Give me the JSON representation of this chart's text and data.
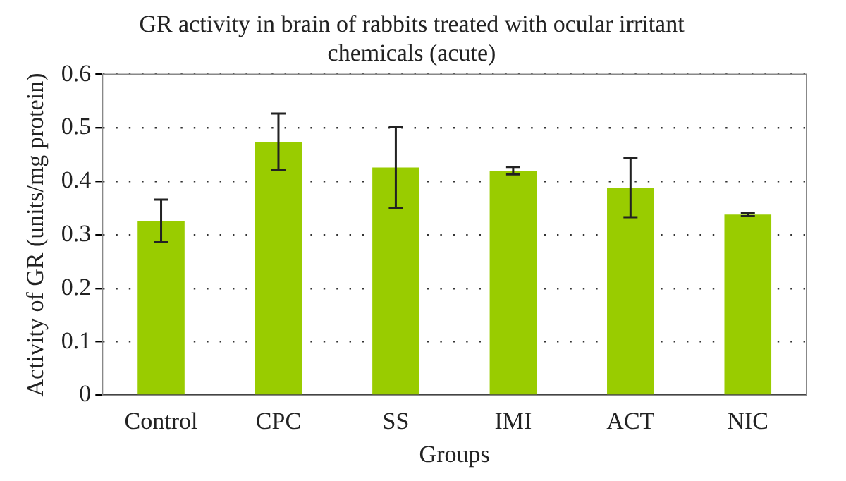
{
  "chart_data": {
    "type": "bar",
    "title": "GR activity in brain of rabbits treated with ocular irritant chemicals (acute)",
    "xlabel": "Groups",
    "ylabel": "Activity of GR (units/mg protein)",
    "categories": [
      "Control",
      "CPC",
      "SS",
      "IMI",
      "ACT",
      "NIC"
    ],
    "values": [
      0.326,
      0.474,
      0.426,
      0.42,
      0.388,
      0.338
    ],
    "errors": [
      0.04,
      0.053,
      0.076,
      0.007,
      0.055,
      0.003
    ],
    "color": "#99cc00",
    "ylim": [
      0,
      0.6
    ],
    "yticks": [
      0,
      0.1,
      0.2,
      0.3,
      0.4,
      0.5,
      0.6
    ],
    "grid": "y"
  }
}
